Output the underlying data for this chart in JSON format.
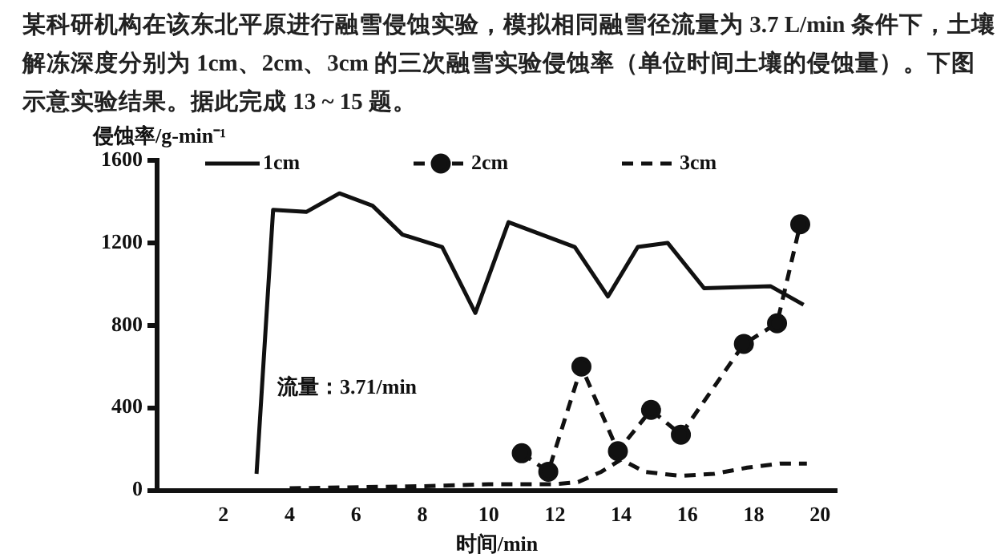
{
  "chart_data": {
    "type": "line",
    "title": "某科研机构在该东北平原进行融雪侵蚀实验，模拟相同融雪径流量为 3.7 L/min 条件下，土壤解冻深度分别为 1cm、2cm、3cm 的三次融雪实验侵蚀率（单位时间土壤的侵蚀量）。下图示意实验结果。据此完成 13 ~ 15 题。",
    "xlabel": "时间/min",
    "ylabel": "侵蚀率/g-min⁻¹",
    "xlim": [
      0,
      20.5
    ],
    "xticks": [
      2,
      4,
      6,
      8,
      10,
      12,
      14,
      16,
      18,
      20
    ],
    "ylim": [
      0,
      1600
    ],
    "yticks": [
      0,
      400,
      800,
      1200,
      1600
    ],
    "grid": false,
    "legend": "top",
    "annotations": [
      "流量：3.71/min"
    ],
    "series": [
      {
        "name": "1cm",
        "color": "#111111",
        "line_style": "solid",
        "marker": "none",
        "x": [
          3,
          3.5,
          4.5,
          5.5,
          6.5,
          7.4,
          8.6,
          9.6,
          10.6,
          12.6,
          13.6,
          14.5,
          15.4,
          16.5,
          18.5,
          19.5
        ],
        "values": [
          80,
          1360,
          1350,
          1440,
          1380,
          1240,
          1180,
          860,
          1300,
          1180,
          940,
          1180,
          1200,
          980,
          990,
          900
        ]
      },
      {
        "name": "2cm",
        "color": "#111111",
        "line_style": "dashed",
        "marker": "circle",
        "x": [
          11,
          11.8,
          12.8,
          13.9,
          14.9,
          15.8,
          17.7,
          18.7,
          19.4
        ],
        "values": [
          180,
          90,
          600,
          190,
          390,
          270,
          710,
          810,
          1290
        ]
      },
      {
        "name": "3cm",
        "color": "#111111",
        "line_style": "dashed",
        "marker": "none",
        "x": [
          4,
          8,
          10,
          12,
          12.7,
          13.4,
          14,
          14.7,
          15.8,
          16.8,
          17.8,
          18.8,
          19.6
        ],
        "values": [
          10,
          20,
          30,
          30,
          40,
          90,
          150,
          90,
          70,
          80,
          110,
          130,
          130
        ]
      }
    ]
  }
}
